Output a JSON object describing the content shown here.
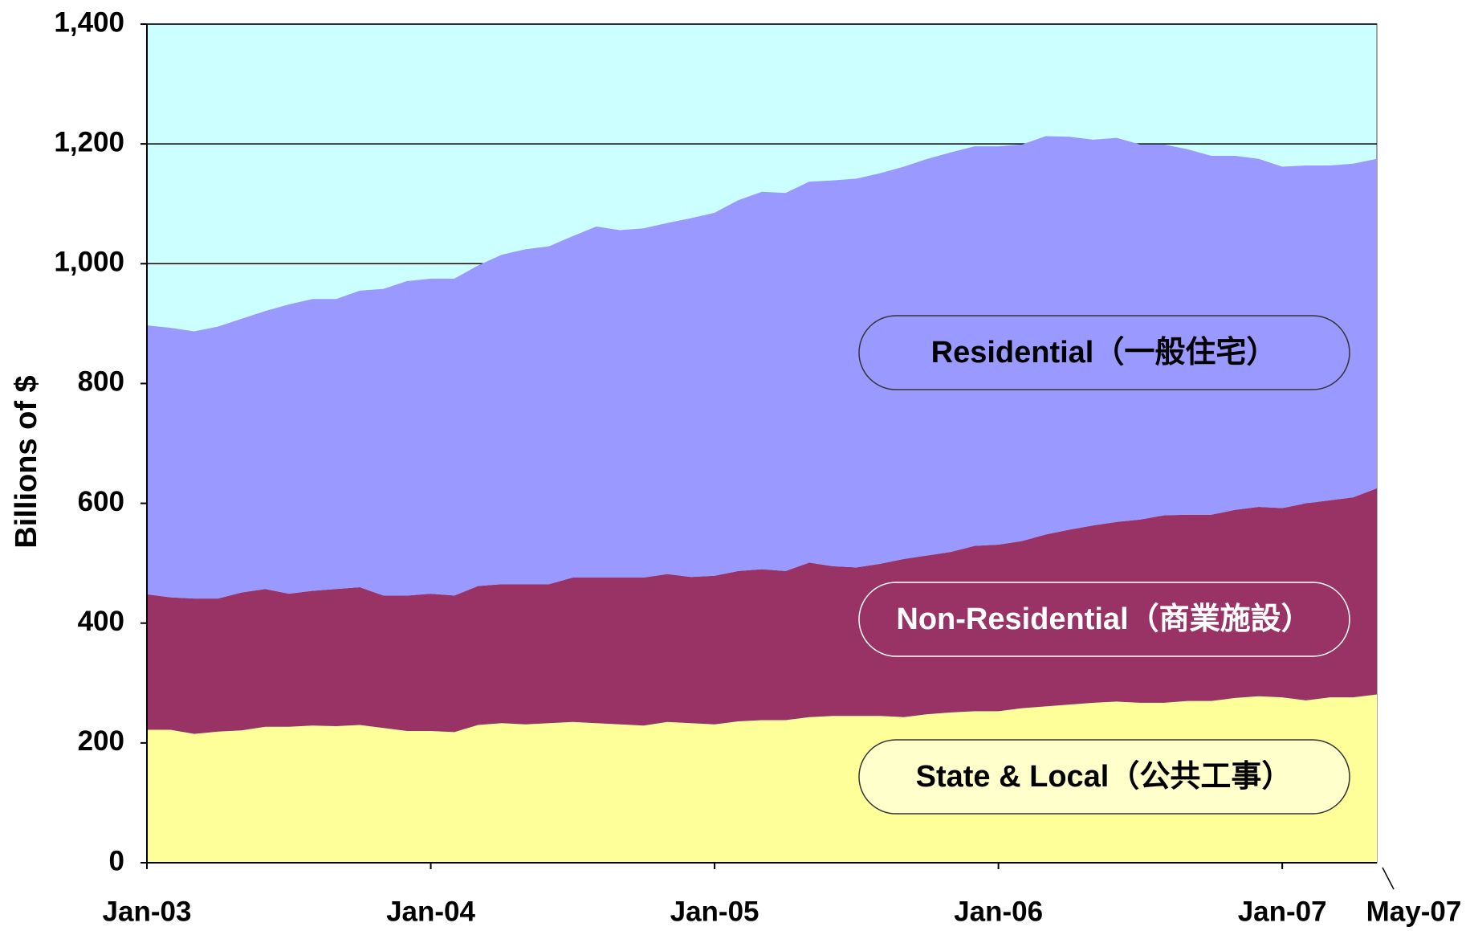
{
  "chart_data": {
    "type": "stacked_area",
    "y_label": "Billions of $",
    "categories": [
      "Jan-03",
      null,
      null,
      null,
      null,
      null,
      null,
      null,
      null,
      null,
      null,
      null,
      "Jan-04",
      null,
      null,
      null,
      null,
      null,
      null,
      null,
      null,
      null,
      null,
      null,
      "Jan-05",
      null,
      null,
      null,
      null,
      null,
      null,
      null,
      null,
      null,
      null,
      null,
      "Jan-06",
      null,
      null,
      null,
      null,
      null,
      null,
      null,
      null,
      null,
      null,
      null,
      "Jan-07",
      null,
      null,
      null,
      "May-07"
    ],
    "series": [
      {
        "name": "State & Local（公共工事）",
        "color": "#ffff99",
        "values": [
          222,
          222,
          215,
          219,
          221,
          227,
          227,
          229,
          228,
          230,
          225,
          220,
          220,
          218,
          230,
          233,
          231,
          233,
          235,
          233,
          231,
          229,
          235,
          233,
          231,
          236,
          238,
          238,
          243,
          245,
          245,
          245,
          243,
          248,
          251,
          253,
          253,
          258,
          261,
          264,
          267,
          269,
          267,
          267,
          270,
          270,
          275,
          278,
          276,
          271,
          276,
          276,
          281
        ]
      },
      {
        "name": "Non-Residential（商業施設）",
        "color": "#993366",
        "values": [
          226,
          221,
          226,
          222,
          230,
          230,
          222,
          225,
          229,
          230,
          221,
          226,
          229,
          228,
          232,
          232,
          234,
          232,
          241,
          243,
          245,
          247,
          247,
          244,
          248,
          251,
          252,
          249,
          258,
          250,
          248,
          254,
          264,
          265,
          268,
          276,
          278,
          279,
          287,
          292,
          296,
          300,
          306,
          313,
          311,
          311,
          314,
          316,
          316,
          329,
          329,
          334,
          344
        ]
      },
      {
        "name": "Residential（一般住宅）",
        "color": "#9999ff",
        "values": [
          449,
          450,
          446,
          454,
          457,
          464,
          483,
          487,
          484,
          495,
          512,
          525,
          526,
          529,
          535,
          550,
          559,
          564,
          570,
          586,
          580,
          583,
          586,
          599,
          606,
          619,
          630,
          631,
          636,
          644,
          649,
          652,
          655,
          662,
          667,
          667,
          665,
          662,
          665,
          656,
          644,
          641,
          626,
          619,
          610,
          599,
          591,
          581,
          570,
          564,
          559,
          557,
          550
        ]
      }
    ],
    "ylim": [
      0,
      1400
    ],
    "yticks": [
      0,
      200,
      400,
      600,
      800,
      {
        "value": 1000,
        "label": "1,000"
      },
      {
        "value": 1200,
        "label": "1,200"
      },
      {
        "value": 1400,
        "label": "1,400"
      }
    ],
    "grid": true,
    "plot_background": "#ccffff"
  }
}
